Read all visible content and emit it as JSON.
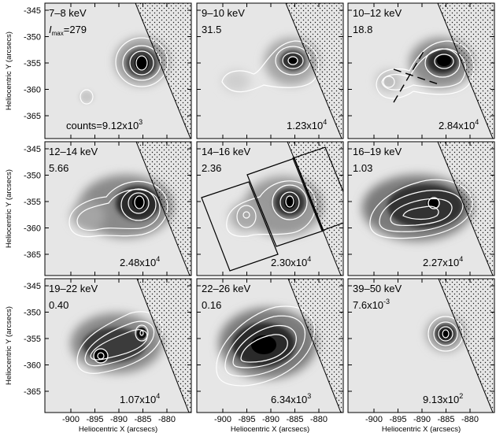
{
  "figure": {
    "xlabel": "Heliocentric X (arcsecs)",
    "ylabel": "Heliocentric Y (arcsecs)",
    "x_ticks": [
      "-900",
      "-895",
      "-890",
      "-885",
      "-880"
    ],
    "y_ticks": [
      "-345",
      "-350",
      "-355",
      "-360",
      "-365"
    ],
    "imax_prefix": "I",
    "imax_sub": "max",
    "counts_prefix": "counts="
  },
  "panels": [
    {
      "energy": "7–8 keV",
      "imax": "279",
      "counts_mant": "9.12x10",
      "counts_exp": "3"
    },
    {
      "energy": "9–10 keV",
      "imax": "31.5",
      "counts_mant": "1.23x10",
      "counts_exp": "4"
    },
    {
      "energy": "10–12 keV",
      "imax": "18.8",
      "counts_mant": "2.84x10",
      "counts_exp": "4"
    },
    {
      "energy": "12–14 keV",
      "imax": "5.66",
      "counts_mant": "2.48x10",
      "counts_exp": "4"
    },
    {
      "energy": "14–16 keV",
      "imax": "2.36",
      "counts_mant": "2.30x10",
      "counts_exp": "4"
    },
    {
      "energy": "16–19 keV",
      "imax": "1.03",
      "counts_mant": "2.27x10",
      "counts_exp": "4"
    },
    {
      "energy": "19–22 keV",
      "imax": "0.40",
      "counts_mant": "1.07x10",
      "counts_exp": "4"
    },
    {
      "energy": "22–26 keV",
      "imax": "0.16",
      "counts_mant": "6.34x10",
      "counts_exp": "3"
    },
    {
      "energy": "39–50 keV",
      "imax": "7.6x10",
      "imax_exp": "-3",
      "counts_mant": "9.13x10",
      "counts_exp": "2"
    }
  ]
}
